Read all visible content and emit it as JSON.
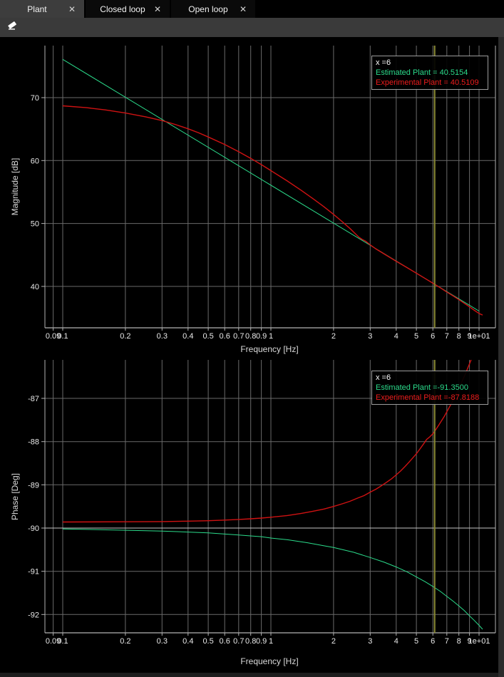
{
  "window": {
    "tabs": [
      {
        "label": "Plant",
        "active": true
      },
      {
        "label": "Closed loop",
        "active": false
      },
      {
        "label": "Open loop",
        "active": false
      }
    ],
    "close_glyph": "✕"
  },
  "toolbar": {
    "tools": [
      {
        "name": "eraser"
      }
    ]
  },
  "colors": {
    "estimated_green": "#2bdb8b",
    "experimental_red": "#cf1212",
    "tooltip_red_text": "#ee1c1c",
    "grid": "#6a6a6a",
    "grid_bright": "#c6c6c6",
    "axis": "#b2b2b2",
    "cursor_line": "#8b8b33",
    "tooltip_border": "#9c9c9c",
    "active_tab_bg": "#3d3d3d",
    "toolbar_bg": "#3a3a3a"
  },
  "chart_data": [
    {
      "type": "line",
      "title": "",
      "xlabel": "Frequency [Hz]",
      "ylabel": "Magnitude [dB]",
      "xscale": "log",
      "xlim": [
        0.082,
        12
      ],
      "ylim": [
        33.4,
        78.3
      ],
      "grid": true,
      "xticks": [
        [
          0.09,
          "0.09"
        ],
        [
          0.1,
          "0.1"
        ],
        [
          0.2,
          "0.2"
        ],
        [
          0.3,
          "0.3"
        ],
        [
          0.4,
          "0.4"
        ],
        [
          0.5,
          "0.5"
        ],
        [
          0.6,
          "0.6"
        ],
        [
          0.7,
          "0.7"
        ],
        [
          0.8,
          "0.8"
        ],
        [
          0.9,
          "0.9"
        ],
        [
          1,
          "1"
        ],
        [
          2,
          "2"
        ],
        [
          3,
          "3"
        ],
        [
          4,
          "4"
        ],
        [
          5,
          "5"
        ],
        [
          6,
          "6"
        ],
        [
          7,
          "7"
        ],
        [
          8,
          "8"
        ],
        [
          9,
          "9"
        ],
        [
          10,
          "1e+01"
        ]
      ],
      "yticks": [
        [
          70,
          "70"
        ],
        [
          60,
          "60"
        ],
        [
          50,
          "50"
        ],
        [
          40,
          "40"
        ]
      ],
      "cursor_x": 6,
      "tooltip": {
        "x": "x =6",
        "estimated": "Estimated Plant = 40.5154",
        "experimental": "Experimental Plant = 40.5109"
      },
      "series": [
        {
          "name": "Estimated Plant",
          "color": "#2bdb8b",
          "points": [
            [
              0.1,
              76.08
            ],
            [
              10,
              36.08
            ]
          ]
        },
        {
          "name": "Experimental Plant",
          "color": "#cf1212",
          "points": [
            [
              0.1,
              68.7
            ],
            [
              0.13,
              68.4
            ],
            [
              0.16,
              68.05
            ],
            [
              0.2,
              67.55
            ],
            [
              0.25,
              66.95
            ],
            [
              0.3,
              66.35
            ],
            [
              0.35,
              65.7
            ],
            [
              0.4,
              65.05
            ],
            [
              0.45,
              64.4
            ],
            [
              0.5,
              63.75
            ],
            [
              0.6,
              62.55
            ],
            [
              0.7,
              61.4
            ],
            [
              0.8,
              60.35
            ],
            [
              0.9,
              59.35
            ],
            [
              1,
              58.4
            ],
            [
              1.2,
              56.75
            ],
            [
              1.4,
              55.25
            ],
            [
              1.6,
              53.9
            ],
            [
              1.8,
              52.65
            ],
            [
              2,
              51.45
            ],
            [
              2.2,
              50.3
            ],
            [
              2.4,
              49.2
            ],
            [
              2.55,
              48.35
            ],
            [
              2.65,
              47.8
            ],
            [
              2.75,
              47.45
            ],
            [
              2.85,
              47.2
            ],
            [
              3,
              46.6
            ],
            [
              3.2,
              45.95
            ],
            [
              3.5,
              45.15
            ],
            [
              4,
              44.0
            ],
            [
              4.5,
              43.0
            ],
            [
              5,
              42.1
            ],
            [
              5.5,
              41.27
            ],
            [
              6,
              40.5109
            ],
            [
              6.5,
              39.8
            ],
            [
              7,
              39.1
            ],
            [
              7.5,
              38.5
            ],
            [
              8,
              37.9
            ],
            [
              8.5,
              37.3
            ],
            [
              9,
              36.75
            ],
            [
              9.5,
              36.2
            ],
            [
              10,
              35.7
            ],
            [
              10.4,
              35.45
            ]
          ]
        }
      ]
    },
    {
      "type": "line",
      "title": "",
      "xlabel": "Frequency [Hz]",
      "ylabel": "Phase [Deg]",
      "xscale": "log",
      "xlim": [
        0.082,
        12
      ],
      "ylim": [
        -92.42,
        -86.11
      ],
      "grid": true,
      "bright_gridline": -90,
      "xticks": [
        [
          0.09,
          "0.09"
        ],
        [
          0.1,
          "0.1"
        ],
        [
          0.2,
          "0.2"
        ],
        [
          0.3,
          "0.3"
        ],
        [
          0.4,
          "0.4"
        ],
        [
          0.5,
          "0.5"
        ],
        [
          0.6,
          "0.6"
        ],
        [
          0.7,
          "0.7"
        ],
        [
          0.8,
          "0.8"
        ],
        [
          0.9,
          "0.9"
        ],
        [
          1,
          "1"
        ],
        [
          2,
          "2"
        ],
        [
          3,
          "3"
        ],
        [
          4,
          "4"
        ],
        [
          5,
          "5"
        ],
        [
          6,
          "6"
        ],
        [
          7,
          "7"
        ],
        [
          8,
          "8"
        ],
        [
          9,
          "9"
        ],
        [
          10,
          "1e+01"
        ]
      ],
      "yticks": [
        [
          -87,
          "-87"
        ],
        [
          -88,
          "-88"
        ],
        [
          -89,
          "-89"
        ],
        [
          -90,
          "-90"
        ],
        [
          -91,
          "-91"
        ],
        [
          -92,
          "-92"
        ]
      ],
      "cursor_x": 6,
      "tooltip": {
        "x": "x =6",
        "estimated": "Estimated Plant =-91.3500",
        "experimental": "Experimental Plant =-87.8188"
      },
      "series": [
        {
          "name": "Estimated Plant",
          "color": "#2bdb8b",
          "points": [
            [
              0.1,
              -90.02
            ],
            [
              0.3,
              -90.07
            ],
            [
              0.5,
              -90.11
            ],
            [
              0.7,
              -90.16
            ],
            [
              0.9,
              -90.2
            ],
            [
              1,
              -90.23
            ],
            [
              1.2,
              -90.27
            ],
            [
              1.5,
              -90.34
            ],
            [
              1.8,
              -90.41
            ],
            [
              2,
              -90.45
            ],
            [
              2.5,
              -90.56
            ],
            [
              3,
              -90.68
            ],
            [
              3.5,
              -90.79
            ],
            [
              4,
              -90.9
            ],
            [
              4.5,
              -91.01
            ],
            [
              5,
              -91.13
            ],
            [
              5.5,
              -91.24
            ],
            [
              6,
              -91.35
            ],
            [
              6.5,
              -91.46
            ],
            [
              7,
              -91.58
            ],
            [
              7.5,
              -91.69
            ],
            [
              8,
              -91.8
            ],
            [
              8.5,
              -91.91
            ],
            [
              9,
              -92.03
            ],
            [
              9.5,
              -92.14
            ],
            [
              10,
              -92.25
            ],
            [
              10.4,
              -92.34
            ]
          ]
        },
        {
          "name": "Experimental Plant",
          "color": "#cf1212",
          "points": [
            [
              0.1,
              -89.86
            ],
            [
              0.2,
              -89.855
            ],
            [
              0.3,
              -89.85
            ],
            [
              0.4,
              -89.84
            ],
            [
              0.5,
              -89.83
            ],
            [
              0.6,
              -89.815
            ],
            [
              0.7,
              -89.8
            ],
            [
              0.8,
              -89.785
            ],
            [
              0.9,
              -89.77
            ],
            [
              1,
              -89.75
            ],
            [
              1.2,
              -89.71
            ],
            [
              1.4,
              -89.66
            ],
            [
              1.6,
              -89.61
            ],
            [
              1.8,
              -89.56
            ],
            [
              2,
              -89.5
            ],
            [
              2.2,
              -89.44
            ],
            [
              2.4,
              -89.38
            ],
            [
              2.6,
              -89.31
            ],
            [
              2.8,
              -89.25
            ],
            [
              3,
              -89.17
            ],
            [
              3.2,
              -89.1
            ],
            [
              3.4,
              -89.02
            ],
            [
              3.6,
              -88.94
            ],
            [
              3.8,
              -88.86
            ],
            [
              4,
              -88.77
            ],
            [
              4.2,
              -88.68
            ],
            [
              4.4,
              -88.58
            ],
            [
              4.6,
              -88.48
            ],
            [
              4.8,
              -88.38
            ],
            [
              5,
              -88.28
            ],
            [
              5.2,
              -88.17
            ],
            [
              5.4,
              -88.06
            ],
            [
              5.6,
              -87.95
            ],
            [
              5.8,
              -87.89
            ],
            [
              6,
              -87.8188
            ],
            [
              6.2,
              -87.72
            ],
            [
              6.4,
              -87.62
            ],
            [
              6.6,
              -87.52
            ],
            [
              6.8,
              -87.42
            ],
            [
              7,
              -87.31
            ],
            [
              7.4,
              -87.1
            ],
            [
              7.8,
              -86.88
            ],
            [
              8.2,
              -86.66
            ],
            [
              8.6,
              -86.43
            ],
            [
              9,
              -86.2
            ],
            [
              9.4,
              -85.97
            ],
            [
              9.8,
              -85.74
            ],
            [
              10,
              -85.62
            ]
          ]
        }
      ]
    }
  ]
}
